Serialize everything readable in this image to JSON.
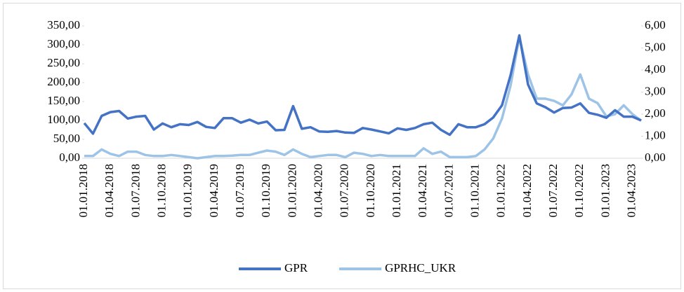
{
  "chart_data": {
    "type": "line",
    "categories": [
      "01.01.2018",
      null,
      null,
      "01.04.2018",
      null,
      null,
      "01.07.2018",
      null,
      null,
      "01.10.2018",
      null,
      null,
      "01.01.2019",
      null,
      null,
      "01.04.2019",
      null,
      null,
      "01.07.2019",
      null,
      null,
      "01.10.2019",
      null,
      null,
      "01.01.2020",
      null,
      null,
      "01.04.2020",
      null,
      null,
      "01.07.2020",
      null,
      null,
      "01.10.2020",
      null,
      null,
      "01.01.2021",
      null,
      null,
      "01.04.2021",
      null,
      null,
      "01.07.2021",
      null,
      null,
      "01.10.2021",
      null,
      null,
      "01.01.2022",
      null,
      null,
      "01.04.2022",
      null,
      null,
      "01.07.2022",
      null,
      null,
      "01.10.2022",
      null,
      null,
      "01.01.2023",
      null,
      null,
      "01.04.2023",
      null
    ],
    "series": [
      {
        "name": "GPR",
        "color": "#4472c4",
        "values": [
          93,
          65,
          112,
          122,
          125,
          105,
          110,
          112,
          76,
          92,
          82,
          90,
          88,
          96,
          83,
          80,
          106,
          106,
          94,
          102,
          92,
          97,
          74,
          75,
          138,
          78,
          82,
          71,
          70,
          72,
          68,
          67,
          80,
          76,
          71,
          66,
          79,
          75,
          80,
          90,
          94,
          75,
          62,
          90,
          82,
          82,
          90,
          108,
          140,
          220,
          325,
          195,
          145,
          135,
          121,
          133,
          134,
          145,
          120,
          115,
          107,
          127,
          110,
          110,
          100
        ]
      },
      {
        "name": "GPRHC_UKR",
        "color": "#9dc3e6",
        "axis": "y2",
        "values": [
          0.1,
          0.1,
          0.4,
          0.2,
          0.1,
          0.3,
          0.3,
          0.15,
          0.1,
          0.1,
          0.15,
          0.1,
          0.05,
          0.0,
          0.05,
          0.1,
          0.1,
          0.12,
          0.15,
          0.15,
          0.25,
          0.35,
          0.3,
          0.15,
          0.4,
          0.2,
          0.05,
          0.1,
          0.15,
          0.15,
          0.05,
          0.25,
          0.2,
          0.1,
          0.15,
          0.1,
          0.1,
          0.1,
          0.1,
          0.45,
          0.2,
          0.3,
          0.05,
          0.05,
          0.05,
          0.1,
          0.4,
          0.9,
          1.8,
          3.3,
          5.5,
          3.8,
          2.7,
          2.7,
          2.6,
          2.4,
          2.9,
          3.8,
          2.7,
          2.5,
          1.9,
          2.0,
          2.4,
          2.0,
          1.7
        ]
      }
    ],
    "ylim": [
      0,
      350
    ],
    "yticks": [
      {
        "value": 0,
        "label": "0,00"
      },
      {
        "value": 50,
        "label": "50,00"
      },
      {
        "value": 100,
        "label": "100,00"
      },
      {
        "value": 150,
        "label": "150,00"
      },
      {
        "value": 200,
        "label": "200,00"
      },
      {
        "value": 250,
        "label": "250,00"
      },
      {
        "value": 300,
        "label": "300,00"
      },
      {
        "value": 350,
        "label": "350,00"
      }
    ],
    "y2lim": [
      0,
      6
    ],
    "y2ticks": [
      {
        "value": 0,
        "label": "0,00"
      },
      {
        "value": 1,
        "label": "1,00"
      },
      {
        "value": 2,
        "label": "2,00"
      },
      {
        "value": 3,
        "label": "3,00"
      },
      {
        "value": 4,
        "label": "4,00"
      },
      {
        "value": 5,
        "label": "5,00"
      },
      {
        "value": 6,
        "label": "6,00"
      }
    ],
    "legend": "bottom"
  }
}
